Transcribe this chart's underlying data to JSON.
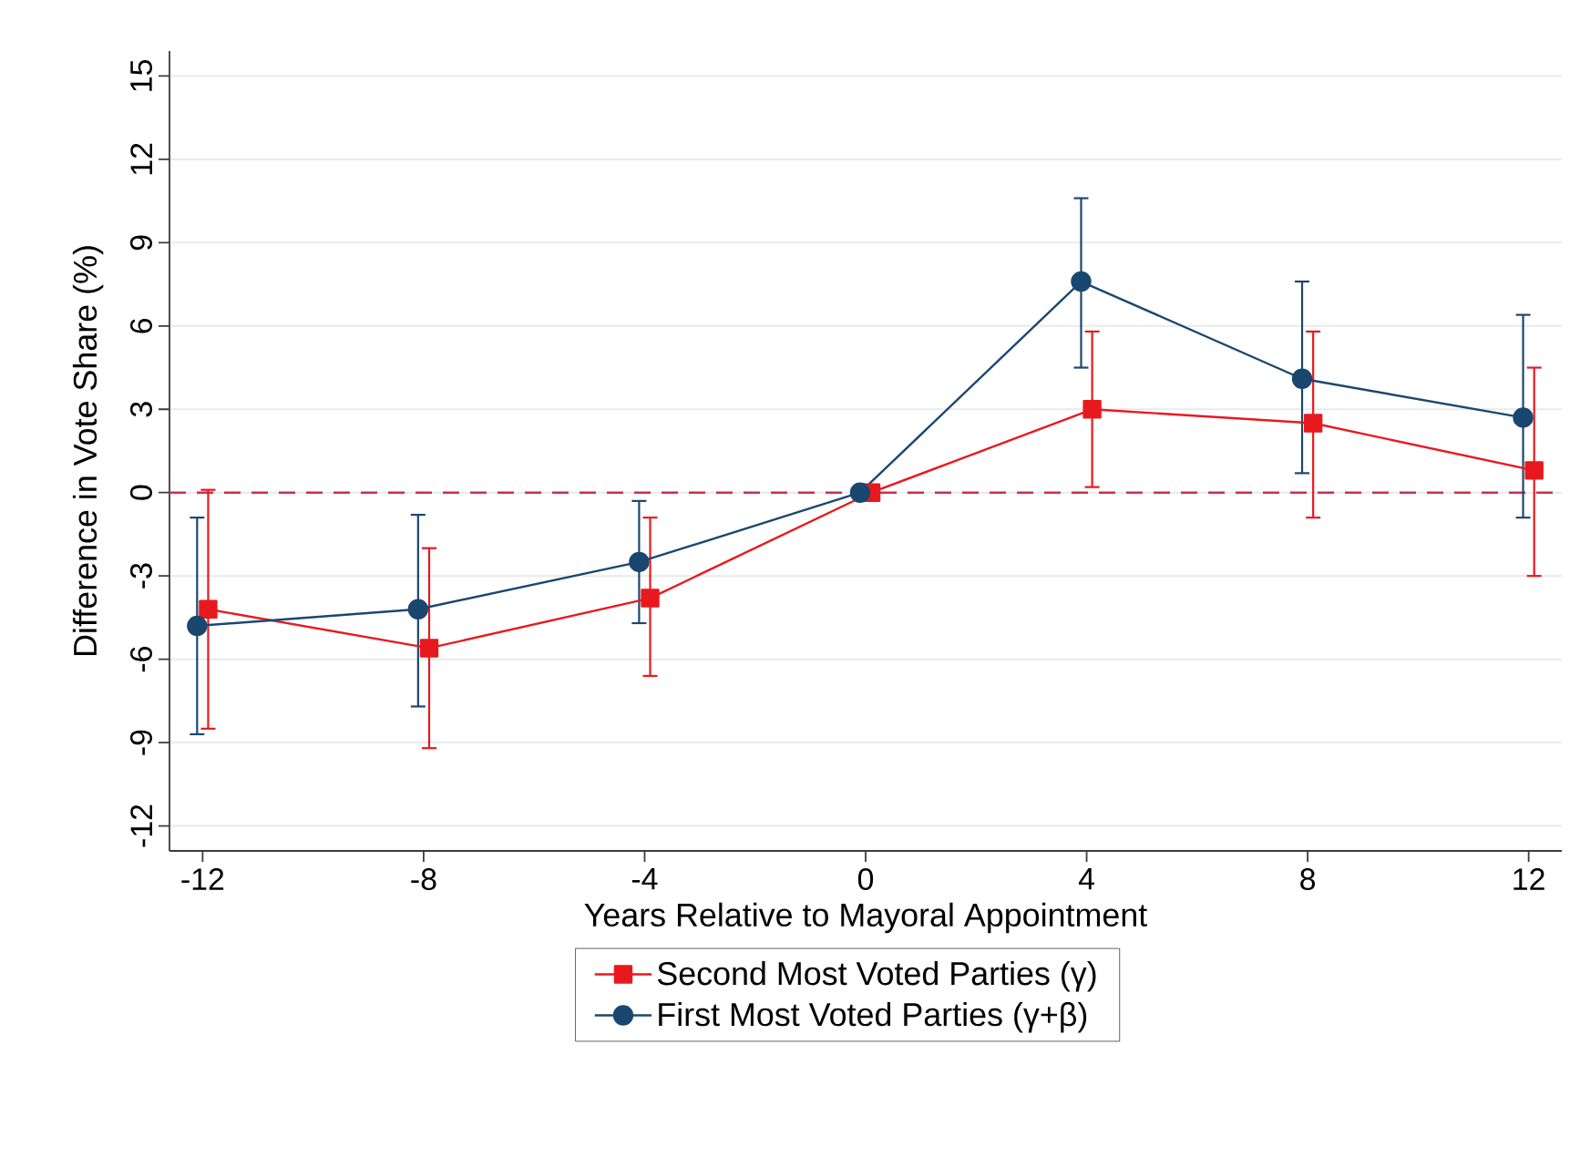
{
  "chart_data": {
    "type": "line",
    "xlabel": "Years Relative to Mayoral Appointment",
    "ylabel": "Difference in Vote Share (%)",
    "xlim": [
      -12.6,
      12.6
    ],
    "ylim": [
      -12.9,
      15.9
    ],
    "xticks": [
      -12,
      -8,
      -4,
      0,
      4,
      8,
      12
    ],
    "yticks": [
      -12,
      -9,
      -6,
      -3,
      0,
      3,
      6,
      9,
      12,
      15
    ],
    "grid": "y",
    "legend": "bottom",
    "line_style": "solid",
    "ref_lines": [
      {
        "axis": "y",
        "value": 0,
        "color": "#c8324a",
        "line_style": "dashed"
      }
    ],
    "series": [
      {
        "name": "Second Most Voted Parties (γ)",
        "color": "#e8191e",
        "marker": "square",
        "x": [
          -11.9,
          -7.9,
          -3.9,
          0.1,
          4.1,
          8.1,
          12.1
        ],
        "values": [
          -4.2,
          -5.6,
          -3.8,
          0,
          3.0,
          2.5,
          0.8
        ],
        "errors": [
          [
            -8.5,
            0.1
          ],
          [
            -9.2,
            -2.0
          ],
          [
            -6.6,
            -0.9
          ],
          null,
          [
            0.2,
            5.8
          ],
          [
            -0.9,
            5.8
          ],
          [
            -3.0,
            4.5
          ]
        ]
      },
      {
        "name": "First Most Voted Parties (γ+β)",
        "color": "#1a476f",
        "marker": "circle",
        "x": [
          -12.1,
          -8.1,
          -4.1,
          -0.1,
          3.9,
          7.9,
          11.9
        ],
        "values": [
          -4.8,
          -4.2,
          -2.5,
          0,
          7.6,
          4.1,
          2.7
        ],
        "errors": [
          [
            -8.7,
            -0.9
          ],
          [
            -7.7,
            -0.8
          ],
          [
            -4.7,
            -0.3
          ],
          null,
          [
            4.5,
            10.6
          ],
          [
            0.7,
            7.6
          ],
          [
            -0.9,
            6.4
          ]
        ]
      }
    ]
  }
}
